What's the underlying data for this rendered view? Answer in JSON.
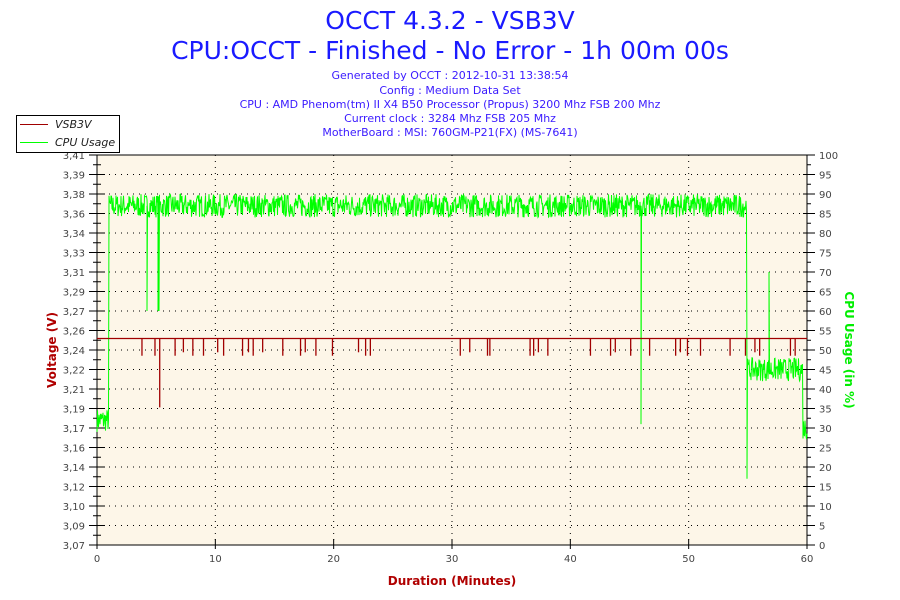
{
  "header": {
    "title": "OCCT 4.3.2 - VSB3V",
    "subtitle": "CPU:OCCT - Finished - No Error - 1h 00m 00s",
    "info": [
      "Generated by OCCT : 2012-10-31 13:38:54",
      "Config : Medium Data Set",
      "CPU : AMD Phenom(tm) II X4 B50 Processor (Propus) 3200 Mhz FSB 200 Mhz",
      "Current clock : 3284 Mhz FSB 205 Mhz",
      "MotherBoard : MSI: 760GM-P21(FX) (MS-7641)"
    ]
  },
  "chart_data": {
    "type": "line",
    "xlabel": "Duration (Minutes)",
    "ylabel": "Voltage (V)",
    "y2label": "CPU Usage (in %)",
    "xlim": [
      0,
      60
    ],
    "ylim": [
      3.07,
      3.41
    ],
    "y2lim": [
      0,
      100
    ],
    "x_ticks": [
      "0",
      "10",
      "20",
      "30",
      "40",
      "50",
      "60"
    ],
    "y_ticks": [
      "3,07",
      "3,09",
      "3,10",
      "3,12",
      "3,14",
      "3,16",
      "3,17",
      "3,19",
      "3,21",
      "3,22",
      "3,24",
      "3,26",
      "3,27",
      "3,29",
      "3,31",
      "3,33",
      "3,34",
      "3,36",
      "3,38",
      "3,39",
      "3,41"
    ],
    "y2_ticks": [
      "0",
      "5",
      "10",
      "15",
      "20",
      "25",
      "30",
      "35",
      "40",
      "45",
      "50",
      "55",
      "60",
      "65",
      "70",
      "75",
      "80",
      "85",
      "90",
      "95",
      "100"
    ],
    "grid": true,
    "legend": {
      "placement": "top-left",
      "entries": [
        "VSB3V",
        "CPU Usage"
      ]
    },
    "colors": {
      "VSB3V": "#a00000",
      "CPU Usage": "#00ff00",
      "axis_title_left": "#b00000",
      "axis_title_right": "#00ee00",
      "plot_bg": "#fdf6e8"
    },
    "series": [
      {
        "name": "VSB3V",
        "axis": "left",
        "baseline": 3.25,
        "dips": [
          {
            "t": 3.8,
            "v": 3.235
          },
          {
            "t": 4.9,
            "v": 3.235
          },
          {
            "t": 5.3,
            "v": 3.19
          },
          {
            "t": 6.6,
            "v": 3.235
          },
          {
            "t": 7.3,
            "v": 3.238
          },
          {
            "t": 8.1,
            "v": 3.235
          },
          {
            "t": 9.0,
            "v": 3.235
          },
          {
            "t": 10.2,
            "v": 3.238
          },
          {
            "t": 10.7,
            "v": 3.235
          },
          {
            "t": 12.3,
            "v": 3.235
          },
          {
            "t": 12.8,
            "v": 3.238
          },
          {
            "t": 13.2,
            "v": 3.235
          },
          {
            "t": 14.0,
            "v": 3.238
          },
          {
            "t": 15.7,
            "v": 3.235
          },
          {
            "t": 17.2,
            "v": 3.235
          },
          {
            "t": 17.6,
            "v": 3.238
          },
          {
            "t": 18.5,
            "v": 3.235
          },
          {
            "t": 19.9,
            "v": 3.235
          },
          {
            "t": 22.1,
            "v": 3.238
          },
          {
            "t": 22.7,
            "v": 3.235
          },
          {
            "t": 23.1,
            "v": 3.235
          },
          {
            "t": 30.7,
            "v": 3.235
          },
          {
            "t": 31.5,
            "v": 3.238
          },
          {
            "t": 33.0,
            "v": 3.235
          },
          {
            "t": 33.2,
            "v": 3.235
          },
          {
            "t": 36.6,
            "v": 3.235
          },
          {
            "t": 36.9,
            "v": 3.235
          },
          {
            "t": 37.3,
            "v": 3.238
          },
          {
            "t": 38.1,
            "v": 3.235
          },
          {
            "t": 41.7,
            "v": 3.235
          },
          {
            "t": 43.4,
            "v": 3.235
          },
          {
            "t": 43.8,
            "v": 3.238
          },
          {
            "t": 45.1,
            "v": 3.235
          },
          {
            "t": 46.7,
            "v": 3.235
          },
          {
            "t": 48.9,
            "v": 3.235
          },
          {
            "t": 49.3,
            "v": 3.238
          },
          {
            "t": 49.9,
            "v": 3.235
          },
          {
            "t": 51.0,
            "v": 3.235
          },
          {
            "t": 53.5,
            "v": 3.235
          },
          {
            "t": 54.8,
            "v": 3.235
          },
          {
            "t": 55.6,
            "v": 3.238
          },
          {
            "t": 56.0,
            "v": 3.235
          },
          {
            "t": 58.6,
            "v": 3.235
          },
          {
            "t": 59.0,
            "v": 3.235
          }
        ]
      },
      {
        "name": "CPU Usage",
        "axis": "right",
        "noise": 3,
        "segments": [
          {
            "from": 0,
            "to": 0.95,
            "value": 32
          },
          {
            "from": 0.95,
            "to": 54.9,
            "value": 87
          },
          {
            "from": 54.9,
            "to": 59.6,
            "value": 45
          },
          {
            "from": 59.6,
            "to": 60,
            "value": 30
          }
        ],
        "spikes": [
          {
            "t": 4.2,
            "value": 60
          },
          {
            "t": 5.2,
            "value": 60
          },
          {
            "t": 46.0,
            "value": 31
          },
          {
            "t": 54.9,
            "value": 17
          },
          {
            "t": 56.8,
            "value": 70
          }
        ]
      }
    ]
  }
}
